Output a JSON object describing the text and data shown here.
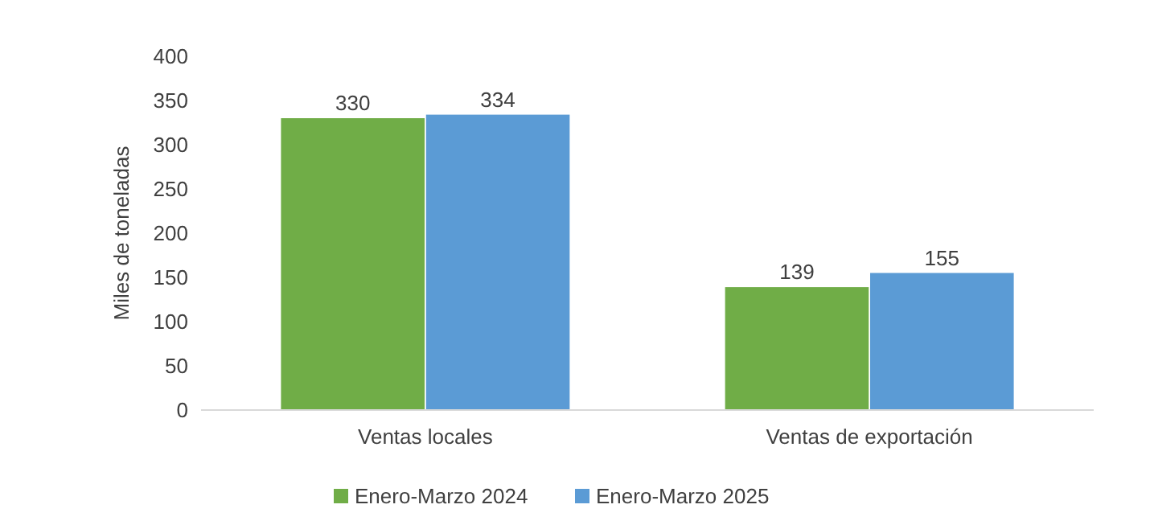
{
  "chart_data": {
    "type": "bar",
    "ylabel": "Miles de toneladas",
    "categories": [
      "Ventas locales",
      "Ventas de exportación"
    ],
    "series": [
      {
        "name": "Enero-Marzo 2024",
        "color": "#70ad47",
        "values": [
          330,
          139
        ]
      },
      {
        "name": "Enero-Marzo 2025",
        "color": "#5b9bd5",
        "values": [
          334,
          155
        ]
      }
    ],
    "ylim": [
      0,
      400
    ],
    "yticks": [
      0,
      50,
      100,
      150,
      200,
      250,
      300,
      350,
      400
    ],
    "grid": false,
    "legend": "bottom",
    "data_labels": true
  }
}
